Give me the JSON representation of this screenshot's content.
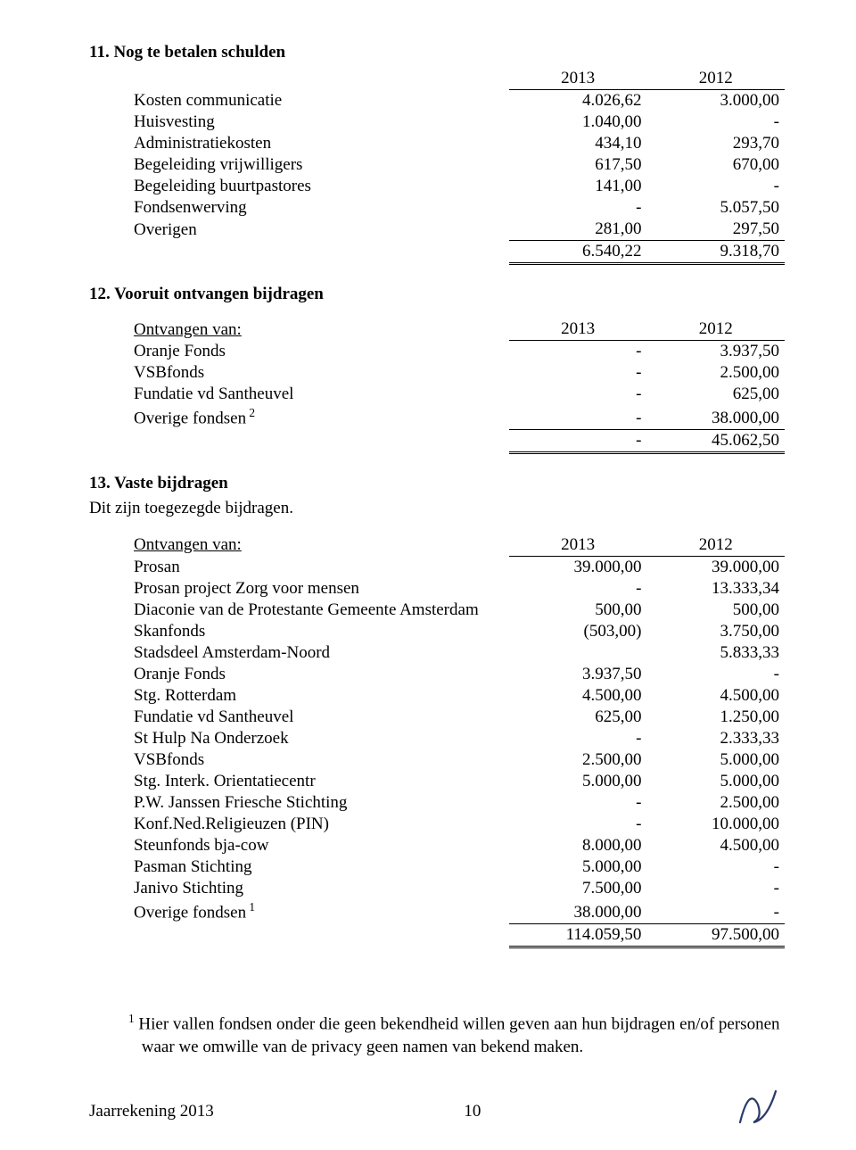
{
  "section11": {
    "heading": "11. Nog te betalen schulden",
    "years": [
      "2013",
      "2012"
    ],
    "rows": [
      {
        "label": "Kosten communicatie",
        "y1": "4.026,62",
        "y2": "3.000,00"
      },
      {
        "label": "Huisvesting",
        "y1": "1.040,00",
        "y2": "-"
      },
      {
        "label": "Administratiekosten",
        "y1": "434,10",
        "y2": "293,70"
      },
      {
        "label": "Begeleiding vrijwilligers",
        "y1": "617,50",
        "y2": "670,00"
      },
      {
        "label": "Begeleiding buurtpastores",
        "y1": "141,00",
        "y2": "-"
      },
      {
        "label": "Fondsenwerving",
        "y1": "-",
        "y2": "5.057,50"
      },
      {
        "label": "Overigen",
        "y1": "281,00",
        "y2": "297,50"
      }
    ],
    "total": {
      "y1": "6.540,22",
      "y2": "9.318,70"
    }
  },
  "section12": {
    "heading": "12. Vooruit ontvangen bijdragen",
    "subheader": "Ontvangen van:",
    "years": [
      "2013",
      "2012"
    ],
    "rows": [
      {
        "label": "Oranje Fonds",
        "y1": "-",
        "y2": "3.937,50"
      },
      {
        "label": "VSBfonds",
        "y1": "-",
        "y2": "2.500,00"
      },
      {
        "label": "Fundatie vd Santheuvel",
        "y1": "-",
        "y2": "625,00"
      },
      {
        "label": "Overige fondsen",
        "sup": "2",
        "y1": "-",
        "y2": "38.000,00"
      }
    ],
    "total": {
      "y1": "-",
      "y2": "45.062,50"
    }
  },
  "section13": {
    "heading": "13. Vaste bijdragen",
    "note": "Dit zijn toegezegde bijdragen.",
    "subheader": "Ontvangen van:",
    "years": [
      "2013",
      "2012"
    ],
    "rows": [
      {
        "label": "Prosan",
        "y1": "39.000,00",
        "y2": "39.000,00"
      },
      {
        "label": "Prosan project Zorg voor mensen",
        "y1": "-",
        "y2": "13.333,34"
      },
      {
        "label": "Diaconie van de Protestante Gemeente Amsterdam",
        "y1": "500,00",
        "y2": "500,00"
      },
      {
        "label": "Skanfonds",
        "y1": "(503,00)",
        "y2": "3.750,00"
      },
      {
        "label": "Stadsdeel Amsterdam-Noord",
        "y1": "",
        "y2": "5.833,33"
      },
      {
        "label": "Oranje Fonds",
        "y1": "3.937,50",
        "y2": "-"
      },
      {
        "label": "Stg. Rotterdam",
        "y1": "4.500,00",
        "y2": "4.500,00"
      },
      {
        "label": "Fundatie vd Santheuvel",
        "y1": "625,00",
        "y2": "1.250,00"
      },
      {
        "label": "St Hulp Na Onderzoek",
        "y1": "-",
        "y2": "2.333,33"
      },
      {
        "label": "VSBfonds",
        "y1": "2.500,00",
        "y2": "5.000,00"
      },
      {
        "label": "Stg. Interk. Orientatiecentr",
        "y1": "5.000,00",
        "y2": "5.000,00"
      },
      {
        "label": "P.W. Janssen Friesche Stichting",
        "y1": "-",
        "y2": "2.500,00"
      },
      {
        "label": "Konf.Ned.Religieuzen (PIN)",
        "y1": "-",
        "y2": "10.000,00"
      },
      {
        "label": "Steunfonds bja-cow",
        "y1": "8.000,00",
        "y2": "4.500,00"
      },
      {
        "label": "Pasman Stichting",
        "y1": "5.000,00",
        "y2": "-"
      },
      {
        "label": "Janivo Stichting",
        "y1": "7.500,00",
        "y2": "-"
      },
      {
        "label": "Overige fondsen",
        "sup": "1",
        "y1": "38.000,00",
        "y2": "-"
      }
    ],
    "total": {
      "y1": "114.059,50",
      "y2": "97.500,00"
    }
  },
  "footnote": {
    "marker": "1",
    "line1": "Hier vallen fondsen onder die geen bekendheid willen geven aan hun bijdragen en/of personen",
    "line2": "waar we omwille van de privacy geen namen van bekend maken."
  },
  "footer": {
    "left": "Jaarrekening 2013",
    "page": "10"
  }
}
